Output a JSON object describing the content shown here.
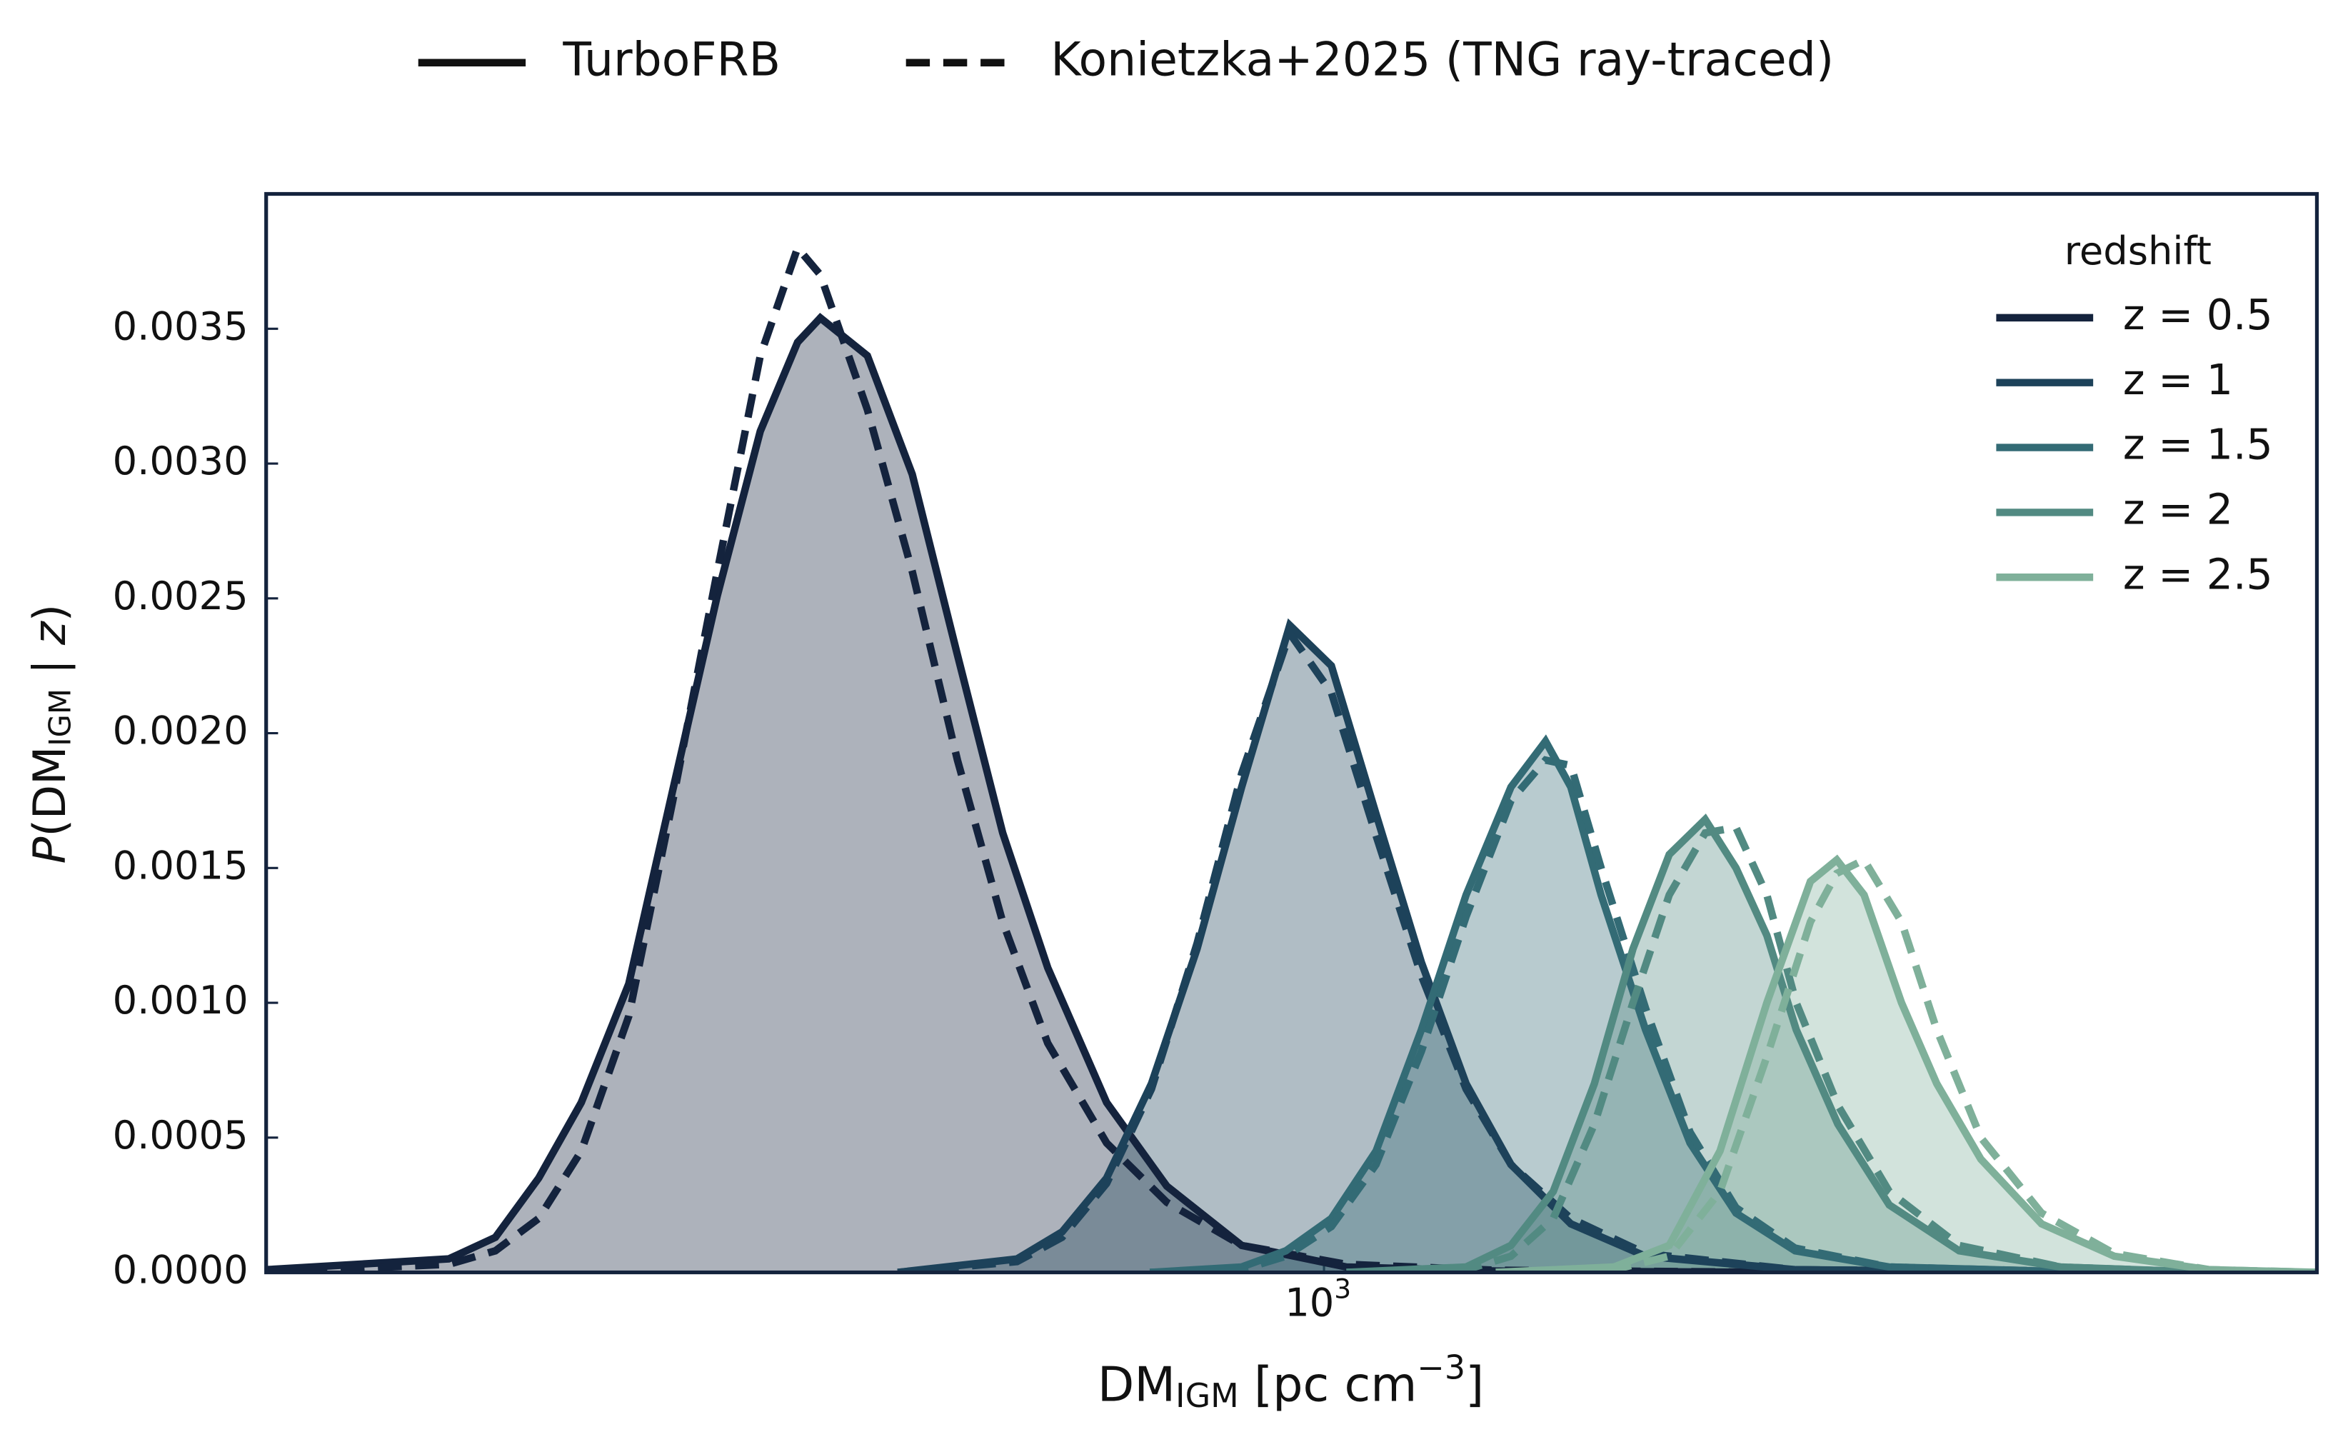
{
  "chart_data": {
    "type": "line",
    "x_label": [
      "DM",
      "IGM",
      " [pc cm",
      "−3",
      "]"
    ],
    "y_label": [
      "P",
      "(DM",
      "IGM",
      " | ",
      "z",
      ")"
    ],
    "xscale": "log",
    "xlim": [
      180,
      5000
    ],
    "xticks": [
      {
        "value": 1000,
        "label": "10",
        "exponent": "3"
      }
    ],
    "ylim": [
      0,
      0.004
    ],
    "yticks": [
      {
        "value": 0,
        "label": "0.0000"
      },
      {
        "value": 0.0005,
        "label": "0.0005"
      },
      {
        "value": 0.001,
        "label": "0.0010"
      },
      {
        "value": 0.0015,
        "label": "0.0015"
      },
      {
        "value": 0.002,
        "label": "0.0020"
      },
      {
        "value": 0.0025,
        "label": "0.0025"
      },
      {
        "value": 0.003,
        "label": "0.0030"
      },
      {
        "value": 0.0035,
        "label": "0.0035"
      }
    ],
    "line_styles": [
      {
        "name": "TurboFRB",
        "dash": "solid"
      },
      {
        "name": "Konietzka+2025 (TNG ray-traced)",
        "dash": "dashed"
      }
    ],
    "legend_title": "redshift",
    "legend": "upper right",
    "fill_alpha": 0.35,
    "series": [
      {
        "name": "z = 0.5",
        "color": "#14233d",
        "x": [
          180,
          242,
          261,
          280,
          300,
          324,
          348,
          374,
          401,
          426,
          442,
          477,
          513,
          552,
          594,
          639,
          703,
          775,
          875,
          1037,
          1321,
          2146
        ],
        "values": [
          1e-05,
          5e-05,
          0.00013,
          0.00035,
          0.00063,
          0.00107,
          0.00179,
          0.00251,
          0.00312,
          0.00345,
          0.00354,
          0.0034,
          0.00296,
          0.00229,
          0.00163,
          0.00113,
          0.00063,
          0.00032,
          0.0001,
          2e-05,
          5e-06,
          0
        ],
        "reference_values": [
          0,
          3e-05,
          8e-05,
          0.0002,
          0.00045,
          0.00095,
          0.00175,
          0.0026,
          0.0034,
          0.0038,
          0.0037,
          0.0032,
          0.0026,
          0.0019,
          0.0013,
          0.00085,
          0.00048,
          0.00026,
          0.0001,
          3e-05,
          8e-06,
          0
        ]
      },
      {
        "name": "z = 1",
        "color": "#1d425a",
        "x": [
          501,
          608,
          654,
          703,
          756,
          814,
          875,
          946,
          1012,
          1088,
          1171,
          1259,
          1354,
          1492,
          1684,
          2146,
          3486
        ],
        "values": [
          0,
          5e-05,
          0.00015,
          0.00035,
          0.0007,
          0.0012,
          0.0018,
          0.0024,
          0.00225,
          0.0017,
          0.00115,
          0.0007,
          0.0004,
          0.00018,
          6e-05,
          1e-05,
          0
        ],
        "reference_values": [
          0,
          4e-05,
          0.00013,
          0.00033,
          0.00068,
          0.00122,
          0.00185,
          0.00237,
          0.00215,
          0.00162,
          0.0011,
          0.00068,
          0.0004,
          0.0002,
          7e-05,
          1e-05,
          0
        ]
      },
      {
        "name": "z = 1.5",
        "color": "#336b75",
        "x": [
          754,
          875,
          940,
          1012,
          1088,
          1171,
          1259,
          1354,
          1432,
          1492,
          1567,
          1684,
          1810,
          1950,
          2146,
          2500,
          3486
        ],
        "values": [
          0,
          2e-05,
          8e-05,
          0.0002,
          0.00045,
          0.0009,
          0.0014,
          0.0018,
          0.00197,
          0.0018,
          0.0014,
          0.0009,
          0.00048,
          0.00022,
          8e-05,
          2e-05,
          0
        ],
        "reference_values": [
          0,
          1e-05,
          6e-05,
          0.00017,
          0.0004,
          0.00082,
          0.00132,
          0.00175,
          0.0019,
          0.00188,
          0.0015,
          0.00098,
          0.00052,
          0.00024,
          9e-05,
          2e-05,
          0
        ]
      },
      {
        "name": "z = 2",
        "color": "#528a82",
        "x": [
          1037,
          1259,
          1354,
          1450,
          1550,
          1650,
          1750,
          1855,
          1950,
          2050,
          2150,
          2300,
          2500,
          2800,
          3300,
          4200
        ],
        "values": [
          0,
          2e-05,
          0.0001,
          0.0003,
          0.0007,
          0.0012,
          0.00155,
          0.00168,
          0.0015,
          0.00125,
          0.0009,
          0.00055,
          0.00025,
          8e-05,
          2e-05,
          0
        ],
        "reference_values": [
          0,
          1e-05,
          6e-05,
          0.0002,
          0.00055,
          0.001,
          0.0014,
          0.00163,
          0.00165,
          0.0014,
          0.001,
          0.00062,
          0.0003,
          0.0001,
          2e-05,
          0
        ]
      },
      {
        "name": "z = 2.5",
        "color": "#7fb09a",
        "x": [
          1321,
          1600,
          1750,
          1900,
          2050,
          2200,
          2296,
          2400,
          2550,
          2700,
          2900,
          3200,
          3600,
          4200,
          5000
        ],
        "values": [
          0,
          2e-05,
          0.0001,
          0.00045,
          0.001,
          0.00145,
          0.00153,
          0.0014,
          0.001,
          0.0007,
          0.00042,
          0.00018,
          6e-05,
          1e-05,
          0
        ],
        "reference_values": [
          0,
          1e-05,
          6e-05,
          0.0003,
          0.0008,
          0.0013,
          0.00148,
          0.00153,
          0.0013,
          0.0009,
          0.0005,
          0.00022,
          7e-05,
          1e-05,
          0
        ]
      }
    ]
  }
}
